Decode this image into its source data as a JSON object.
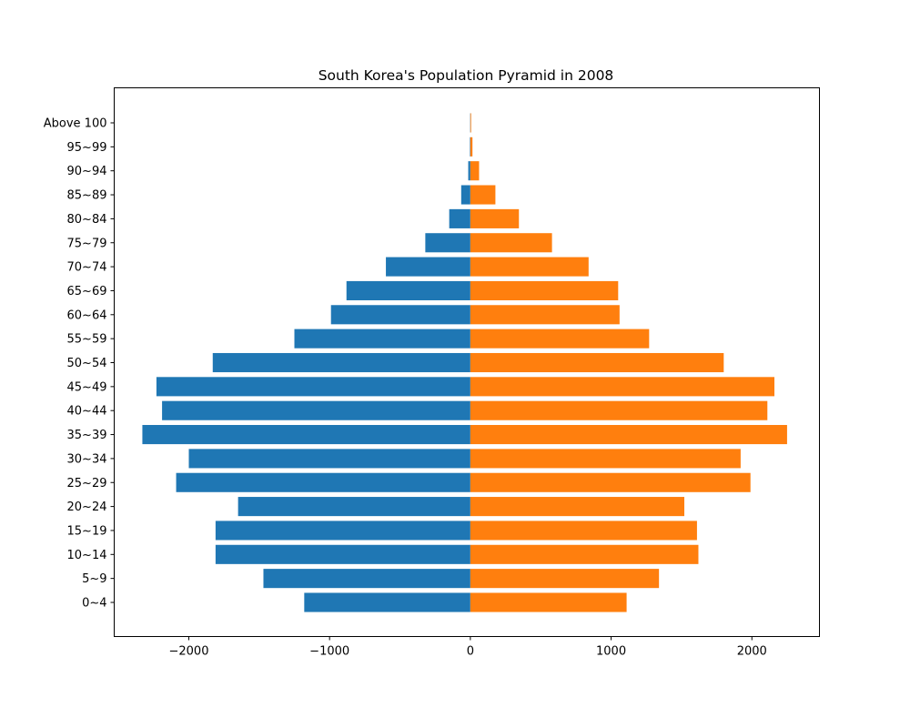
{
  "chart_data": {
    "type": "bar",
    "orientation": "horizontal",
    "title": "South Korea's Population Pyramid in 2008",
    "xlabel": "",
    "ylabel": "",
    "xlim": [
      -2530,
      2480
    ],
    "xticks": [
      -2000,
      -1000,
      0,
      1000,
      2000
    ],
    "xtick_labels": [
      "−2000",
      "−1000",
      "0",
      "1000",
      "2000"
    ],
    "grid": false,
    "legend": "none",
    "categories": [
      "0~4",
      "5~9",
      "10~14",
      "15~19",
      "20~24",
      "25~29",
      "30~34",
      "35~39",
      "40~44",
      "45~49",
      "50~54",
      "55~59",
      "60~64",
      "65~69",
      "70~74",
      "75~79",
      "80~84",
      "85~89",
      "90~94",
      "95~99",
      "Above 100"
    ],
    "series": [
      {
        "color": "#1f77b4",
        "values": [
          -1180,
          -1470,
          -1810,
          -1810,
          -1650,
          -2090,
          -2000,
          -2330,
          -2190,
          -2230,
          -1830,
          -1250,
          -990,
          -880,
          -600,
          -320,
          -150,
          -65,
          -15,
          -3,
          -1
        ]
      },
      {
        "color": "#ff7f0e",
        "values": [
          1110,
          1340,
          1620,
          1610,
          1520,
          1990,
          1920,
          2250,
          2110,
          2160,
          1800,
          1270,
          1060,
          1050,
          840,
          580,
          345,
          178,
          62,
          15,
          3
        ]
      }
    ]
  }
}
